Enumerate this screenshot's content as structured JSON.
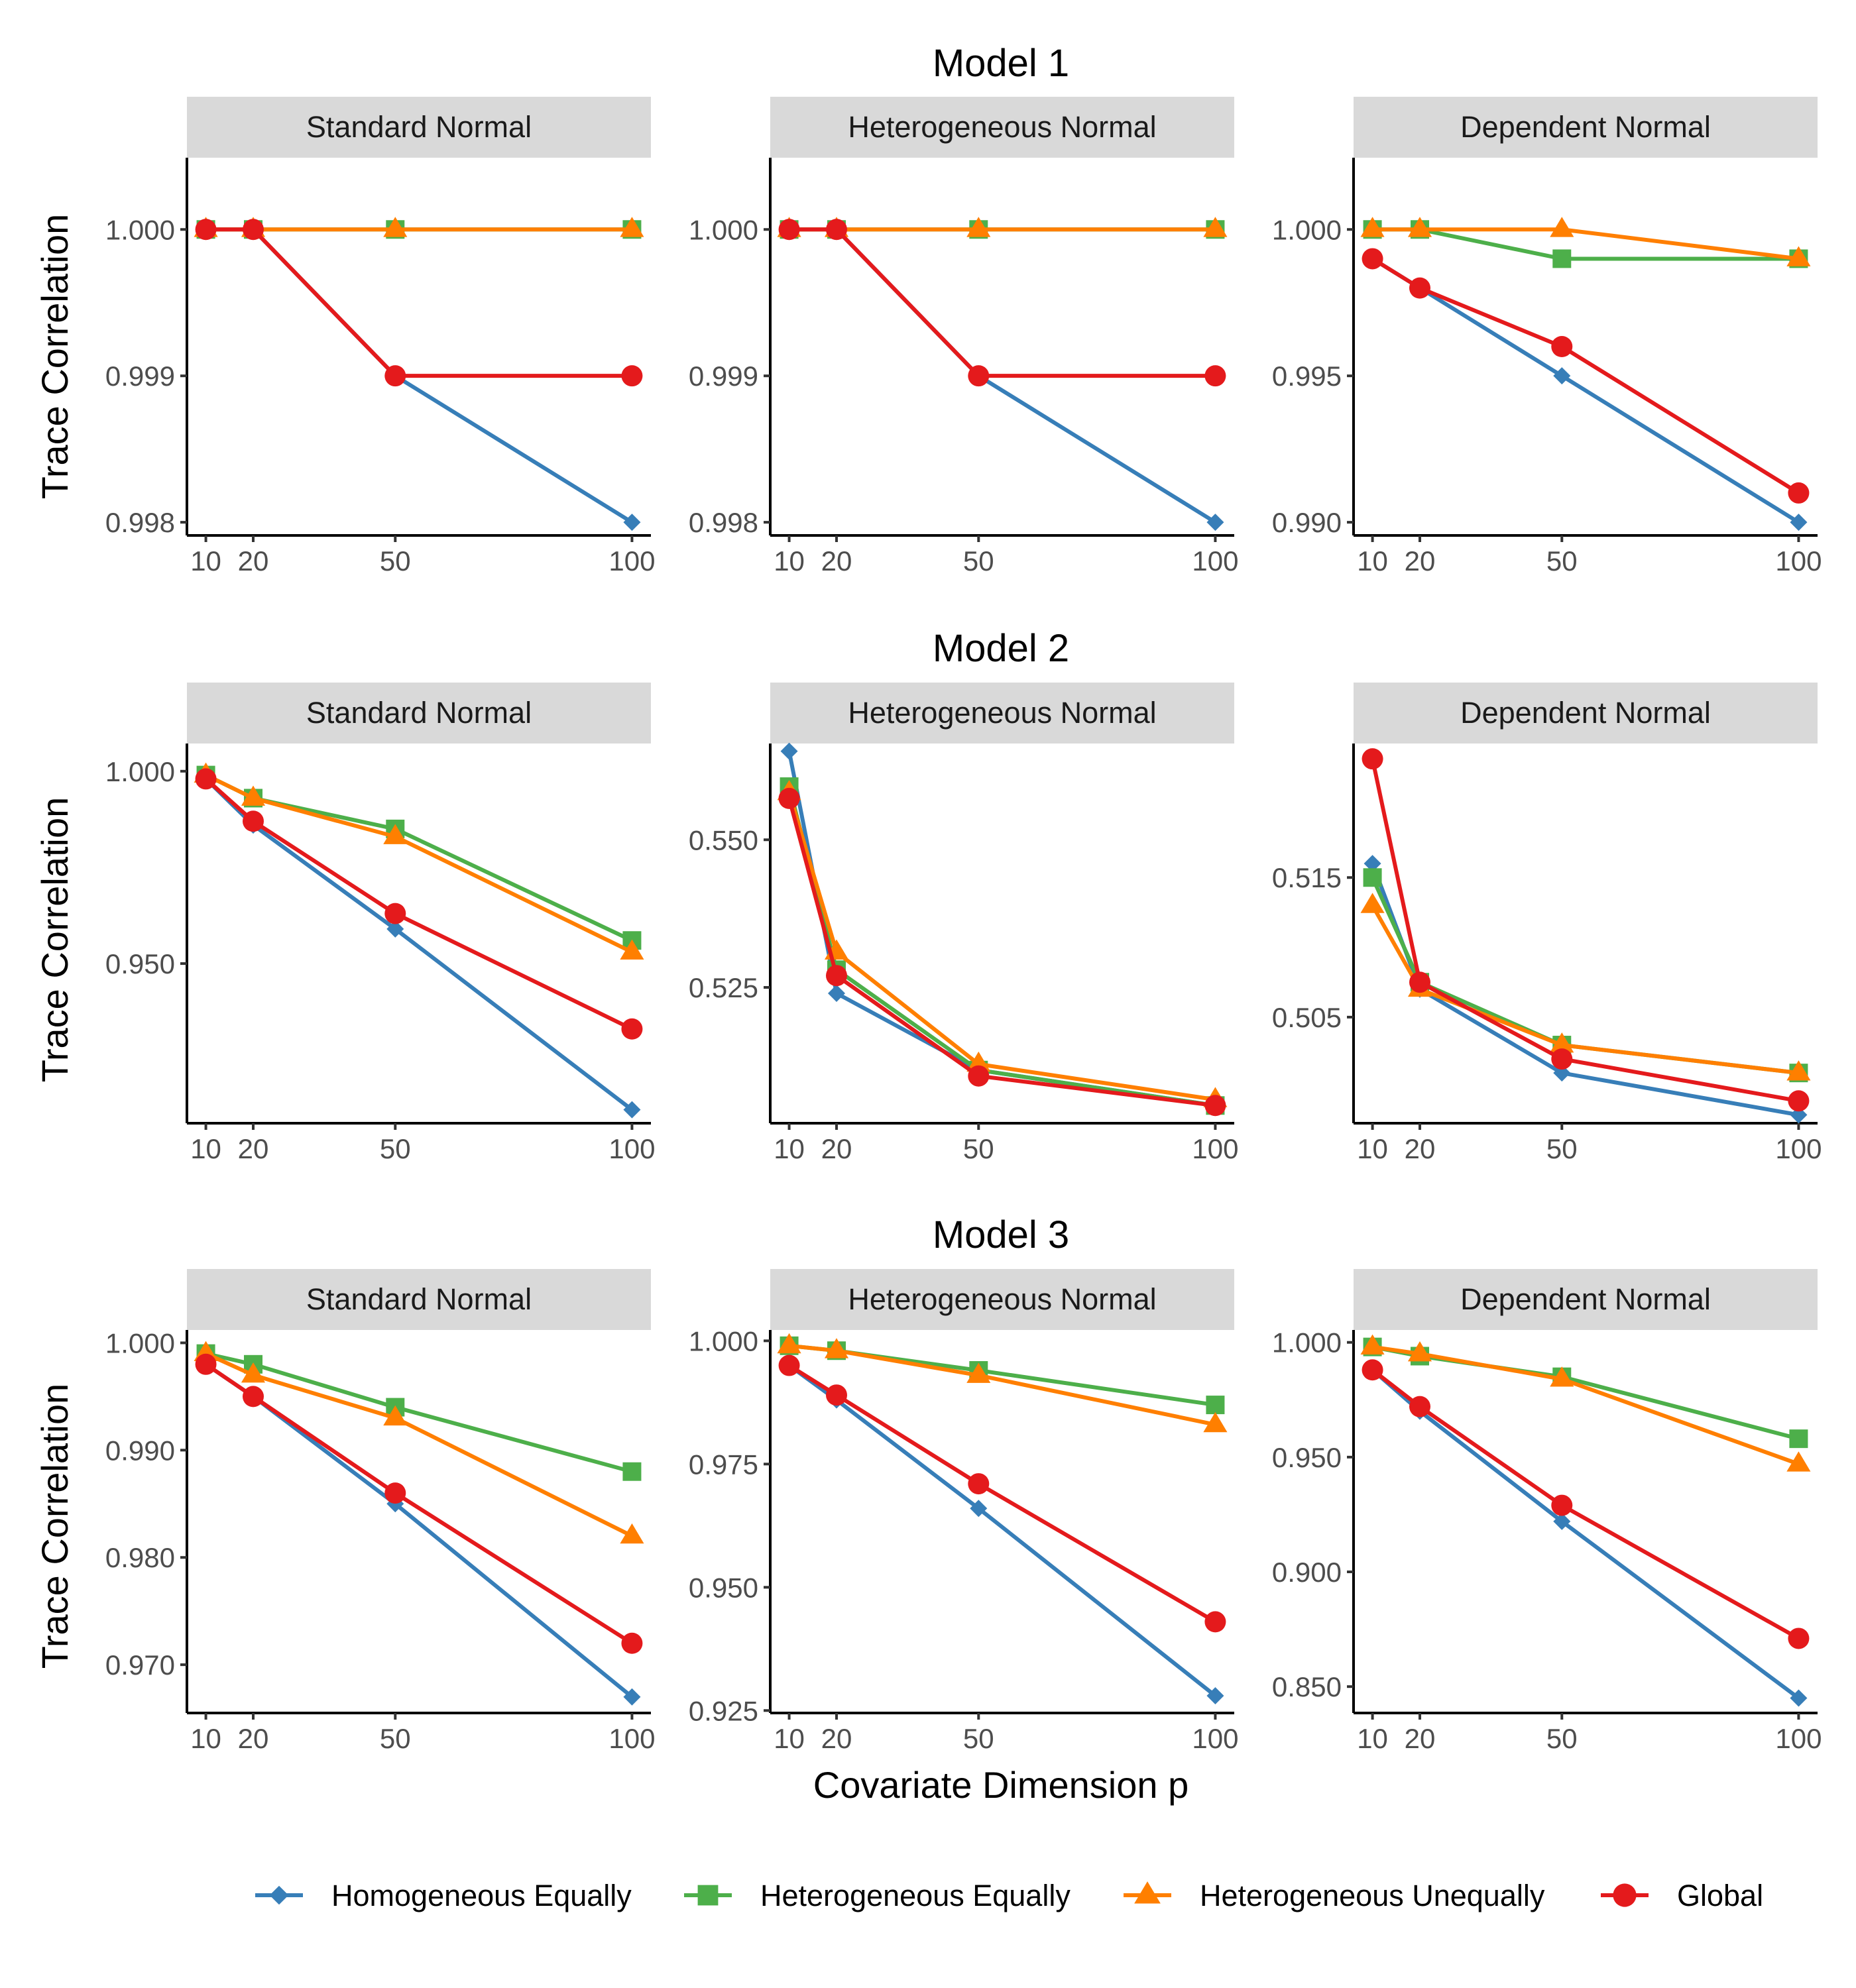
{
  "axis_labels": {
    "y": "Trace Correlation",
    "x": "Covariate Dimension p"
  },
  "colors": {
    "Homogeneous Equally": "#377eb8",
    "Heterogeneous Equally": "#4daf4a",
    "Heterogeneous Unequally": "#ff7f00",
    "Global": "#e41a1c",
    "strip_bg": "#d9d9d9"
  },
  "legend": [
    {
      "label": "Homogeneous Equally",
      "marker": "diamond"
    },
    {
      "label": "Heterogeneous Equally",
      "marker": "square"
    },
    {
      "label": "Heterogeneous Unequally",
      "marker": "triangle"
    },
    {
      "label": "Global",
      "marker": "circle"
    }
  ],
  "chart_data": [
    {
      "type": "line",
      "model": "Model 1",
      "title": "Standard Normal",
      "x": [
        10,
        20,
        50,
        100
      ],
      "xticks": [
        "10",
        "20",
        "50",
        "100"
      ],
      "xlim": [
        6,
        104
      ],
      "ylim": [
        0.99791,
        1.00049
      ],
      "yticks": [
        0.998,
        0.999,
        1.0
      ],
      "yticklabels": [
        "0.998",
        "0.999",
        "1.000"
      ],
      "series": [
        {
          "name": "Homogeneous Equally",
          "values": [
            1.0,
            1.0,
            0.999,
            0.998
          ]
        },
        {
          "name": "Heterogeneous Equally",
          "values": [
            1.0,
            1.0,
            1.0,
            1.0
          ]
        },
        {
          "name": "Heterogeneous Unequally",
          "values": [
            1.0,
            1.0,
            1.0,
            1.0
          ]
        },
        {
          "name": "Global",
          "values": [
            1.0,
            1.0,
            0.999,
            0.999
          ]
        }
      ]
    },
    {
      "type": "line",
      "model": "Model 1",
      "title": "Heterogeneous Normal",
      "x": [
        10,
        20,
        50,
        100
      ],
      "xticks": [
        "10",
        "20",
        "50",
        "100"
      ],
      "xlim": [
        6,
        104
      ],
      "ylim": [
        0.99791,
        1.00049
      ],
      "yticks": [
        0.998,
        0.999,
        1.0
      ],
      "yticklabels": [
        "0.998",
        "0.999",
        "1.000"
      ],
      "series": [
        {
          "name": "Homogeneous Equally",
          "values": [
            1.0,
            1.0,
            0.999,
            0.998
          ]
        },
        {
          "name": "Heterogeneous Equally",
          "values": [
            1.0,
            1.0,
            1.0,
            1.0
          ]
        },
        {
          "name": "Heterogeneous Unequally",
          "values": [
            1.0,
            1.0,
            1.0,
            1.0
          ]
        },
        {
          "name": "Global",
          "values": [
            1.0,
            1.0,
            0.999,
            0.999
          ]
        }
      ]
    },
    {
      "type": "line",
      "model": "Model 1",
      "title": "Dependent Normal",
      "x": [
        10,
        20,
        50,
        100
      ],
      "xticks": [
        "10",
        "20",
        "50",
        "100"
      ],
      "xlim": [
        6,
        104
      ],
      "ylim": [
        0.98955,
        1.00245
      ],
      "yticks": [
        0.99,
        0.995,
        1.0
      ],
      "yticklabels": [
        "0.990",
        "0.995",
        "1.000"
      ],
      "series": [
        {
          "name": "Homogeneous Equally",
          "values": [
            0.999,
            0.998,
            0.995,
            0.99
          ]
        },
        {
          "name": "Heterogeneous Equally",
          "values": [
            1.0,
            1.0,
            0.999,
            0.999
          ]
        },
        {
          "name": "Heterogeneous Unequally",
          "values": [
            1.0,
            1.0,
            1.0,
            0.999
          ]
        },
        {
          "name": "Global",
          "values": [
            0.999,
            0.998,
            0.996,
            0.991
          ]
        }
      ]
    },
    {
      "type": "line",
      "model": "Model 2",
      "title": "Standard Normal",
      "x": [
        10,
        20,
        50,
        100
      ],
      "xticks": [
        "10",
        "20",
        "50",
        "100"
      ],
      "xlim": [
        6,
        104
      ],
      "ylim": [
        0.9085,
        1.0072
      ],
      "yticks": [
        0.95,
        1.0
      ],
      "yticklabels": [
        "0.950",
        "1.000"
      ],
      "series": [
        {
          "name": "Homogeneous Equally",
          "values": [
            0.998,
            0.986,
            0.959,
            0.912
          ]
        },
        {
          "name": "Heterogeneous Equally",
          "values": [
            0.999,
            0.993,
            0.985,
            0.956
          ]
        },
        {
          "name": "Heterogeneous Unequally",
          "values": [
            0.999,
            0.993,
            0.983,
            0.953
          ]
        },
        {
          "name": "Global",
          "values": [
            0.998,
            0.987,
            0.963,
            0.933
          ]
        }
      ]
    },
    {
      "type": "line",
      "model": "Model 2",
      "title": "Heterogeneous Normal",
      "x": [
        10,
        20,
        50,
        100
      ],
      "xticks": [
        "10",
        "20",
        "50",
        "100"
      ],
      "xlim": [
        6,
        104
      ],
      "ylim": [
        0.502,
        0.5663
      ],
      "yticks": [
        0.525,
        0.55
      ],
      "yticklabels": [
        "0.525",
        "0.550"
      ],
      "series": [
        {
          "name": "Homogeneous Equally",
          "values": [
            0.565,
            0.524,
            0.511,
            0.505
          ]
        },
        {
          "name": "Heterogeneous Equally",
          "values": [
            0.559,
            0.528,
            0.511,
            0.505
          ]
        },
        {
          "name": "Heterogeneous Unequally",
          "values": [
            0.558,
            0.531,
            0.512,
            0.506
          ]
        },
        {
          "name": "Global",
          "values": [
            0.557,
            0.527,
            0.51,
            0.505
          ]
        }
      ]
    },
    {
      "type": "line",
      "model": "Model 2",
      "title": "Dependent Normal",
      "x": [
        10,
        20,
        50,
        100
      ],
      "xticks": [
        "10",
        "20",
        "50",
        "100"
      ],
      "xlim": [
        6,
        104
      ],
      "ylim": [
        0.4974,
        0.5246
      ],
      "yticks": [
        0.505,
        0.515
      ],
      "yticklabels": [
        "0.505",
        "0.515"
      ],
      "series": [
        {
          "name": "Homogeneous Equally",
          "values": [
            0.516,
            0.507,
            0.501,
            0.498
          ]
        },
        {
          "name": "Heterogeneous Equally",
          "values": [
            0.515,
            0.5075,
            0.503,
            0.501
          ]
        },
        {
          "name": "Heterogeneous Unequally",
          "values": [
            0.513,
            0.507,
            0.503,
            0.501
          ]
        },
        {
          "name": "Global",
          "values": [
            0.5235,
            0.5075,
            0.502,
            0.499
          ]
        }
      ]
    },
    {
      "type": "line",
      "model": "Model 3",
      "title": "Standard Normal",
      "x": [
        10,
        20,
        50,
        100
      ],
      "xticks": [
        "10",
        "20",
        "50",
        "100"
      ],
      "xlim": [
        6,
        104
      ],
      "ylim": [
        0.9655,
        1.0012
      ],
      "yticks": [
        0.97,
        0.98,
        0.99,
        1.0
      ],
      "yticklabels": [
        "0.970",
        "0.980",
        "0.990",
        "1.000"
      ],
      "series": [
        {
          "name": "Homogeneous Equally",
          "values": [
            0.998,
            0.995,
            0.985,
            0.967
          ]
        },
        {
          "name": "Heterogeneous Equally",
          "values": [
            0.999,
            0.998,
            0.994,
            0.988
          ]
        },
        {
          "name": "Heterogeneous Unequally",
          "values": [
            0.999,
            0.997,
            0.993,
            0.982
          ]
        },
        {
          "name": "Global",
          "values": [
            0.998,
            0.995,
            0.986,
            0.972
          ]
        }
      ]
    },
    {
      "type": "line",
      "model": "Model 3",
      "title": "Heterogeneous Normal",
      "x": [
        10,
        20,
        50,
        100
      ],
      "xticks": [
        "10",
        "20",
        "50",
        "100"
      ],
      "xlim": [
        6,
        104
      ],
      "ylim": [
        0.9245,
        1.0022
      ],
      "yticks": [
        0.925,
        0.95,
        0.975,
        1.0
      ],
      "yticklabels": [
        "0.925",
        "0.950",
        "0.975",
        "1.000"
      ],
      "series": [
        {
          "name": "Homogeneous Equally",
          "values": [
            0.995,
            0.988,
            0.966,
            0.928
          ]
        },
        {
          "name": "Heterogeneous Equally",
          "values": [
            0.999,
            0.998,
            0.994,
            0.987
          ]
        },
        {
          "name": "Heterogeneous Unequally",
          "values": [
            0.999,
            0.998,
            0.993,
            0.983
          ]
        },
        {
          "name": "Global",
          "values": [
            0.995,
            0.989,
            0.971,
            0.943
          ]
        }
      ]
    },
    {
      "type": "line",
      "model": "Model 3",
      "title": "Dependent Normal",
      "x": [
        10,
        20,
        50,
        100
      ],
      "xticks": [
        "10",
        "20",
        "50",
        "100"
      ],
      "xlim": [
        6,
        104
      ],
      "ylim": [
        0.8385,
        1.0054
      ],
      "yticks": [
        0.85,
        0.9,
        0.95,
        1.0
      ],
      "yticklabels": [
        "0.850",
        "0.900",
        "0.950",
        "1.000"
      ],
      "series": [
        {
          "name": "Homogeneous Equally",
          "values": [
            0.988,
            0.97,
            0.922,
            0.845
          ]
        },
        {
          "name": "Heterogeneous Equally",
          "values": [
            0.998,
            0.994,
            0.985,
            0.958
          ]
        },
        {
          "name": "Heterogeneous Unequally",
          "values": [
            0.998,
            0.995,
            0.984,
            0.947
          ]
        },
        {
          "name": "Global",
          "values": [
            0.988,
            0.972,
            0.929,
            0.871
          ]
        }
      ]
    }
  ]
}
